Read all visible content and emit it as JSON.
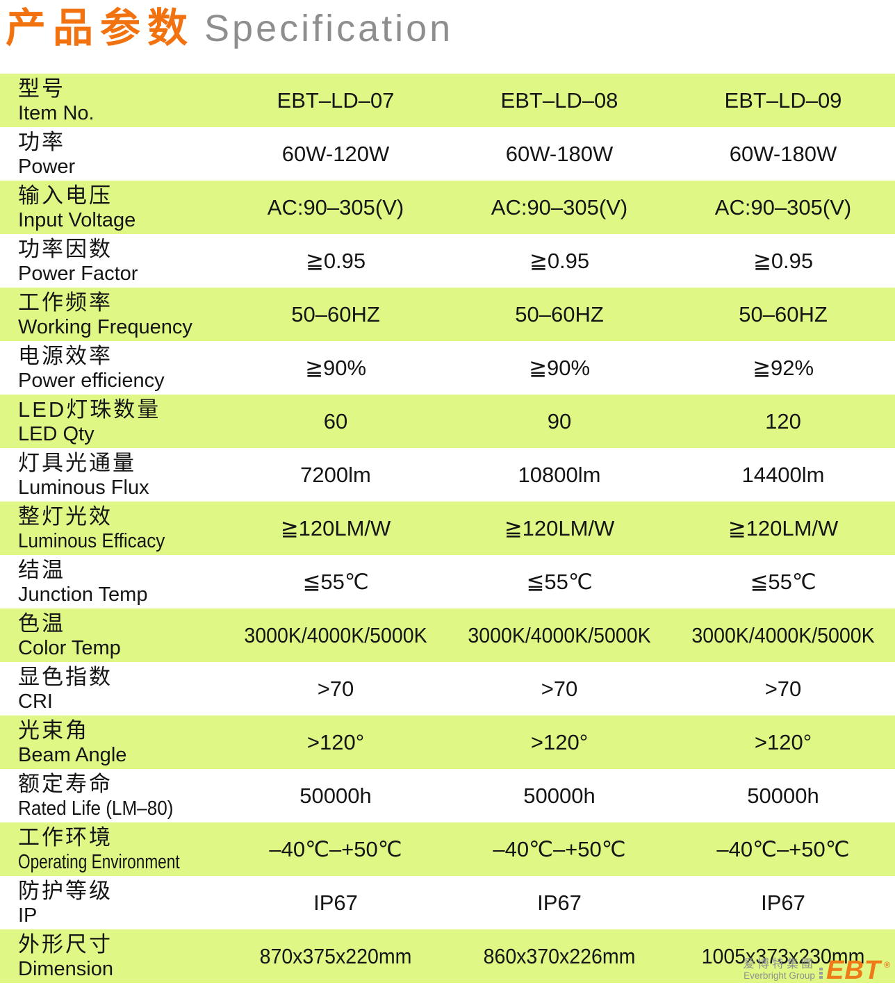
{
  "title": {
    "zh": "产品参数",
    "en": "Specification"
  },
  "table": {
    "rows": [
      {
        "label_zh": "型号",
        "label_en": "Item No.",
        "values": [
          "EBT–LD–07",
          "EBT–LD–08",
          "EBT–LD–09"
        ]
      },
      {
        "label_zh": "功率",
        "label_en": "Power",
        "values": [
          "60W-120W",
          "60W-180W",
          "60W-180W"
        ]
      },
      {
        "label_zh": "输入电压",
        "label_en": "Input Voltage",
        "values": [
          "AC:90–305(V)",
          "AC:90–305(V)",
          "AC:90–305(V)"
        ]
      },
      {
        "label_zh": "功率因数",
        "label_en": "Power Factor",
        "values": [
          "≧0.95",
          "≧0.95",
          "≧0.95"
        ]
      },
      {
        "label_zh": "工作频率",
        "label_en": "Working Frequency",
        "values": [
          "50–60HZ",
          "50–60HZ",
          "50–60HZ"
        ]
      },
      {
        "label_zh": "电源效率",
        "label_en": "Power efficiency",
        "values": [
          "≧90%",
          "≧90%",
          "≧92%"
        ]
      },
      {
        "label_zh": "LED灯珠数量",
        "label_en": "LED Qty",
        "values": [
          "60",
          "90",
          "120"
        ]
      },
      {
        "label_zh": "灯具光通量",
        "label_en": "Luminous Flux",
        "values": [
          "7200lm",
          "10800lm",
          "14400lm"
        ]
      },
      {
        "label_zh": "整灯光效",
        "label_en": "Luminous Efficacy",
        "values": [
          "≧120LM/W",
          "≧120LM/W",
          "≧120LM/W"
        ]
      },
      {
        "label_zh": "结温",
        "label_en": "Junction Temp",
        "values": [
          "≦55℃",
          "≦55℃",
          "≦55℃"
        ]
      },
      {
        "label_zh": "色温",
        "label_en": "Color Temp",
        "values": [
          "3000K/4000K/5000K",
          "3000K/4000K/5000K",
          "3000K/4000K/5000K"
        ]
      },
      {
        "label_zh": "显色指数",
        "label_en": "CRI",
        "values": [
          ">70",
          ">70",
          ">70"
        ]
      },
      {
        "label_zh": "光束角",
        "label_en": "Beam Angle",
        "values": [
          ">120°",
          ">120°",
          ">120°"
        ]
      },
      {
        "label_zh": "额定寿命",
        "label_en": "Rated Life (LM–80)",
        "values": [
          "50000h",
          "50000h",
          "50000h"
        ]
      },
      {
        "label_zh": "工作环境",
        "label_en": "Operating Environment",
        "values": [
          "–40℃–+50℃",
          "–40℃–+50℃",
          "–40℃–+50℃"
        ]
      },
      {
        "label_zh": "防护等级",
        "label_en": "IP",
        "values": [
          "IP67",
          "IP67",
          "IP67"
        ]
      },
      {
        "label_zh": "外形尺寸",
        "label_en": "Dimension",
        "values": [
          "870x375x220mm",
          "860x370x226mm",
          "1005x373x230mm"
        ]
      }
    ]
  },
  "logo": {
    "zh": "爱博特集團",
    "en": "Everbright Group",
    "mark": "EBT",
    "reg": "®"
  },
  "colors": {
    "row_green": "#def785",
    "title_orange": "#f1720f",
    "title_gray": "#8e8e8e",
    "logo_orange": "#ef7a18",
    "text_black": "#151515"
  }
}
